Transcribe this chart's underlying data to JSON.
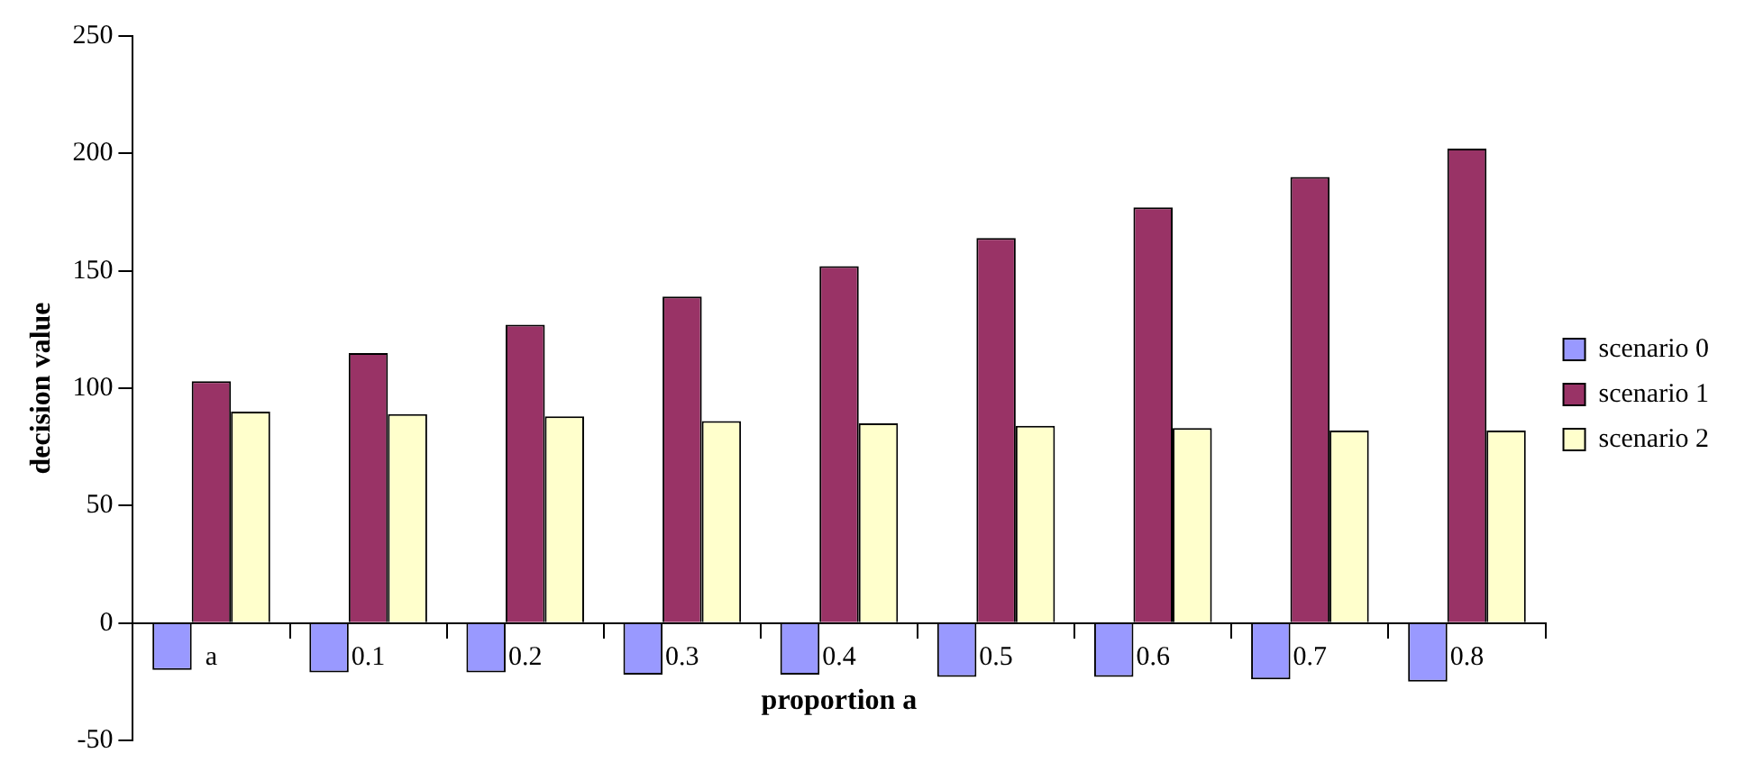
{
  "chart_data": {
    "type": "bar",
    "xlabel": "proportion a",
    "ylabel": "decision value",
    "categories": [
      "a",
      "0.1",
      "0.2",
      "0.3",
      "0.4",
      "0.5",
      "0.6",
      "0.7",
      "0.8"
    ],
    "series": [
      {
        "name": "scenario 0",
        "color": "#9999ff",
        "values": [
          -20,
          -21,
          -21,
          -22,
          -22,
          -23,
          -23,
          -24,
          -25
        ]
      },
      {
        "name": "scenario 1",
        "color": "#993366",
        "values": [
          103,
          115,
          127,
          139,
          152,
          164,
          177,
          190,
          202
        ]
      },
      {
        "name": "scenario 2",
        "color": "#ffffcc",
        "values": [
          90,
          89,
          88,
          86,
          85,
          84,
          83,
          82,
          82
        ]
      }
    ],
    "ylim": [
      -50,
      250
    ],
    "yticks": [
      -50,
      0,
      50,
      100,
      150,
      200,
      250
    ],
    "grid": false,
    "legend": "right"
  }
}
